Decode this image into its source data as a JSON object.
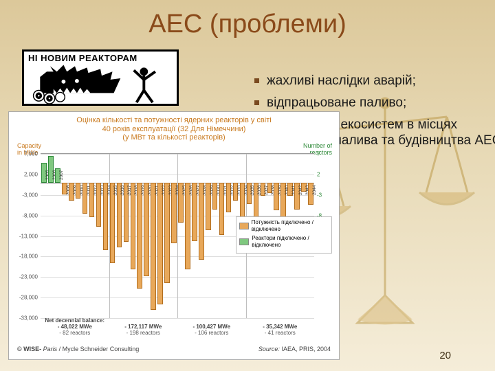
{
  "title": "АЕС (проблеми)",
  "slide_number": "20",
  "protest_caption": "НІ НОВИМ РЕАКТОРАМ",
  "bullets": [
    "жахливі наслідки аварій;",
    "відпрацьоване паливо;",
    "руйнування екосистем в місцях добування палива та будівництва АЕС."
  ],
  "chart": {
    "type": "bar",
    "title_line1": "Оцінка кількості та потужності ядерних реакторів у світі",
    "title_line2": "40 років експлуатації (32 Для Німеччини)",
    "title_line3": "(у МВт та кількості реакторів)",
    "left_axis_label": "Capacity\nin MWe",
    "right_axis_label": "Number of\nreactors",
    "ylim": [
      -33000,
      7000
    ],
    "yticks": [
      7000,
      2000,
      -3000,
      -8000,
      -13000,
      -18000,
      -23000,
      -28000,
      -33000
    ],
    "yticks_r": [
      7,
      2,
      -3,
      -8
    ],
    "years": [
      2005,
      2006,
      2007,
      2008,
      2009,
      2010,
      2011,
      2012,
      2013,
      2014,
      2015,
      2016,
      2017,
      2018,
      2019,
      2020,
      2021,
      2022,
      2023,
      2024,
      2025,
      2026,
      2027,
      2028,
      2029,
      2030,
      2031,
      2032,
      2033,
      2034,
      2035,
      2036,
      2037,
      2038,
      2039,
      2040,
      2041,
      2042,
      2043,
      2044
    ],
    "values": [
      4800,
      6500,
      3500,
      -2800,
      -4400,
      -3800,
      -7600,
      -8400,
      -10800,
      -16500,
      -19600,
      -15800,
      -14400,
      -21200,
      -25800,
      -22800,
      -31000,
      -29600,
      -24400,
      -14800,
      -9800,
      -21200,
      -14200,
      -18800,
      -11600,
      -6600,
      -12800,
      -7200,
      -4400,
      -8800,
      -5200,
      -12200,
      -3200,
      -2600,
      -6800,
      -9600,
      -3200,
      -6600,
      -2200,
      -5400
    ],
    "bar_colors": {
      "positive": "#7fc87f",
      "negative": "#e8a85a"
    },
    "bar_border": {
      "positive": "#2f8a3a",
      "negative": "#b26e1f"
    },
    "background_color": "#ffffff",
    "grid_color": "#dddddd",
    "periods": [
      {
        "label_top": "Net decennial balance:",
        "label_val": "- 48,022 MWe",
        "label_reactors": "- 82 reactors",
        "from": 3,
        "to": 10
      },
      {
        "label_top": "",
        "label_val": "- 172,117 MWe",
        "label_reactors": "- 198 reactors",
        "from": 10,
        "to": 20
      },
      {
        "label_top": "",
        "label_val": "- 100,427 MWe",
        "label_reactors": "- 106 reactors",
        "from": 20,
        "to": 30
      },
      {
        "label_top": "",
        "label_val": "- 35,342 MWe",
        "label_reactors": "- 41 reactors",
        "from": 30,
        "to": 40
      }
    ],
    "legend": [
      {
        "color": "#e8a85a",
        "label": "Потужність підключено / відключено"
      },
      {
        "color": "#7fc87f",
        "label": "Реактори підключено / відключено"
      }
    ],
    "footer_left": "© WISE- Paris / Mycle Schneider Consulting",
    "footer_right": "Source: IAEA, PRIS, 2004",
    "title_fontsize": 11,
    "tick_fontsize": 8,
    "title_color": "#c97a1f"
  },
  "colors": {
    "slide_bg_top": "#dcc89a",
    "slide_bg_bottom": "#f5edd9",
    "title_color": "#8a4a1a",
    "bullet_marker": "#7a4a20"
  }
}
